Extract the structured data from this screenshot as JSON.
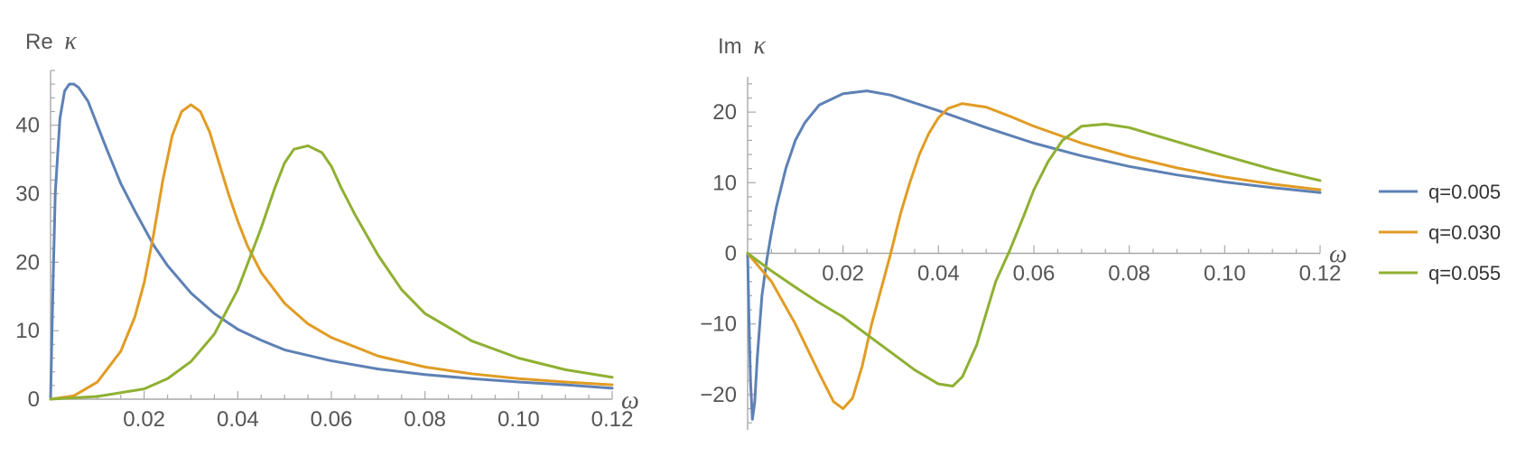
{
  "chart_data": [
    {
      "type": "line",
      "ylabel": "Re",
      "ylabel_symbol": "κ",
      "xlabel_symbol": "ω",
      "xlim": [
        0,
        0.12
      ],
      "ylim": [
        0,
        48
      ],
      "xticks": [
        0.02,
        0.04,
        0.06,
        0.08,
        0.1,
        0.12
      ],
      "xtick_labels": [
        "0.02",
        "0.04",
        "0.06",
        "0.08",
        "0.10",
        "0.12"
      ],
      "yticks": [
        0,
        10,
        20,
        30,
        40
      ],
      "ytick_labels": [
        "0",
        "10",
        "20",
        "30",
        "40"
      ],
      "grid": false,
      "series": [
        {
          "name": "q=0.005",
          "color": "#5e81b5",
          "x": [
            0,
            0.0005,
            0.001,
            0.002,
            0.003,
            0.004,
            0.005,
            0.006,
            0.008,
            0.01,
            0.012,
            0.015,
            0.018,
            0.02,
            0.022,
            0.025,
            0.03,
            0.035,
            0.04,
            0.045,
            0.05,
            0.06,
            0.07,
            0.08,
            0.09,
            0.1,
            0.11,
            0.12
          ],
          "y": [
            0,
            16,
            30,
            41,
            45,
            46,
            46,
            45.5,
            43.5,
            40,
            36.5,
            31.5,
            27.5,
            25,
            22.5,
            19.5,
            15.5,
            12.5,
            10.2,
            8.6,
            7.2,
            5.6,
            4.4,
            3.6,
            3,
            2.5,
            2.1,
            1.6
          ]
        },
        {
          "name": "q=0.030",
          "color": "#e19c24",
          "x": [
            0,
            0.005,
            0.01,
            0.015,
            0.018,
            0.02,
            0.022,
            0.024,
            0.026,
            0.028,
            0.03,
            0.032,
            0.034,
            0.036,
            0.038,
            0.04,
            0.042,
            0.045,
            0.05,
            0.055,
            0.06,
            0.07,
            0.08,
            0.09,
            0.1,
            0.11,
            0.12
          ],
          "y": [
            0,
            0.5,
            2.5,
            7,
            12,
            17,
            24,
            32,
            38.5,
            42,
            43,
            42,
            39,
            34.5,
            30,
            26,
            22.5,
            18.5,
            14,
            11,
            9,
            6.3,
            4.7,
            3.7,
            3,
            2.5,
            2.1
          ]
        },
        {
          "name": "q=0.055",
          "color": "#8fb032",
          "x": [
            0,
            0.01,
            0.02,
            0.025,
            0.03,
            0.035,
            0.04,
            0.045,
            0.048,
            0.05,
            0.052,
            0.055,
            0.058,
            0.06,
            0.062,
            0.065,
            0.07,
            0.075,
            0.08,
            0.09,
            0.1,
            0.11,
            0.12
          ],
          "y": [
            0,
            0.4,
            1.5,
            3,
            5.5,
            9.5,
            16,
            25,
            31,
            34.5,
            36.5,
            37,
            36,
            34,
            31,
            27,
            21,
            16,
            12.5,
            8.5,
            6,
            4.3,
            3.2
          ]
        }
      ]
    },
    {
      "type": "line",
      "ylabel": "Im",
      "ylabel_symbol": "κ",
      "xlabel_symbol": "ω",
      "xlim": [
        0,
        0.12
      ],
      "ylim": [
        -25,
        25
      ],
      "xticks": [
        0.02,
        0.04,
        0.06,
        0.08,
        0.1,
        0.12
      ],
      "xtick_labels": [
        "0.02",
        "0.04",
        "0.06",
        "0.08",
        "0.10",
        "0.12"
      ],
      "yticks": [
        -20,
        -10,
        0,
        10,
        20
      ],
      "ytick_labels": [
        "−20",
        "−10",
        "0",
        "10",
        "20"
      ],
      "grid": false,
      "legend_position": "right",
      "series": [
        {
          "name": "q=0.005",
          "color": "#5e81b5",
          "x": [
            0,
            0.0003,
            0.0006,
            0.001,
            0.0015,
            0.002,
            0.003,
            0.004,
            0.005,
            0.006,
            0.008,
            0.01,
            0.012,
            0.015,
            0.02,
            0.025,
            0.03,
            0.04,
            0.05,
            0.06,
            0.07,
            0.08,
            0.09,
            0.1,
            0.11,
            0.12
          ],
          "y": [
            0,
            -10,
            -18,
            -23.5,
            -21,
            -15,
            -6,
            -1,
            3,
            6.5,
            12,
            16,
            18.5,
            21,
            22.6,
            23,
            22.4,
            20.2,
            17.8,
            15.6,
            13.8,
            12.3,
            11.1,
            10.1,
            9.3,
            8.6
          ]
        },
        {
          "name": "q=0.030",
          "color": "#e19c24",
          "x": [
            0,
            0.005,
            0.01,
            0.015,
            0.018,
            0.02,
            0.022,
            0.024,
            0.026,
            0.028,
            0.03,
            0.032,
            0.034,
            0.036,
            0.038,
            0.04,
            0.042,
            0.045,
            0.05,
            0.055,
            0.06,
            0.07,
            0.08,
            0.09,
            0.1,
            0.11,
            0.12
          ],
          "y": [
            0,
            -4,
            -10,
            -17,
            -21,
            -22,
            -20.5,
            -16,
            -10,
            -5,
            0,
            5.5,
            10,
            14,
            17,
            19.2,
            20.5,
            21.2,
            20.7,
            19.4,
            18,
            15.6,
            13.7,
            12.1,
            10.8,
            9.8,
            9
          ]
        },
        {
          "name": "q=0.055",
          "color": "#8fb032",
          "x": [
            0,
            0.005,
            0.01,
            0.015,
            0.02,
            0.025,
            0.03,
            0.035,
            0.04,
            0.043,
            0.045,
            0.048,
            0.05,
            0.052,
            0.055,
            0.058,
            0.06,
            0.063,
            0.066,
            0.07,
            0.075,
            0.08,
            0.09,
            0.1,
            0.11,
            0.12
          ],
          "y": [
            0,
            -2.5,
            -4.8,
            -7,
            -9,
            -11.5,
            -14,
            -16.5,
            -18.5,
            -18.8,
            -17.5,
            -13,
            -8.5,
            -4,
            0.5,
            5.5,
            9,
            13,
            16,
            18,
            18.3,
            17.8,
            15.8,
            13.8,
            11.9,
            10.3
          ]
        }
      ]
    }
  ]
}
